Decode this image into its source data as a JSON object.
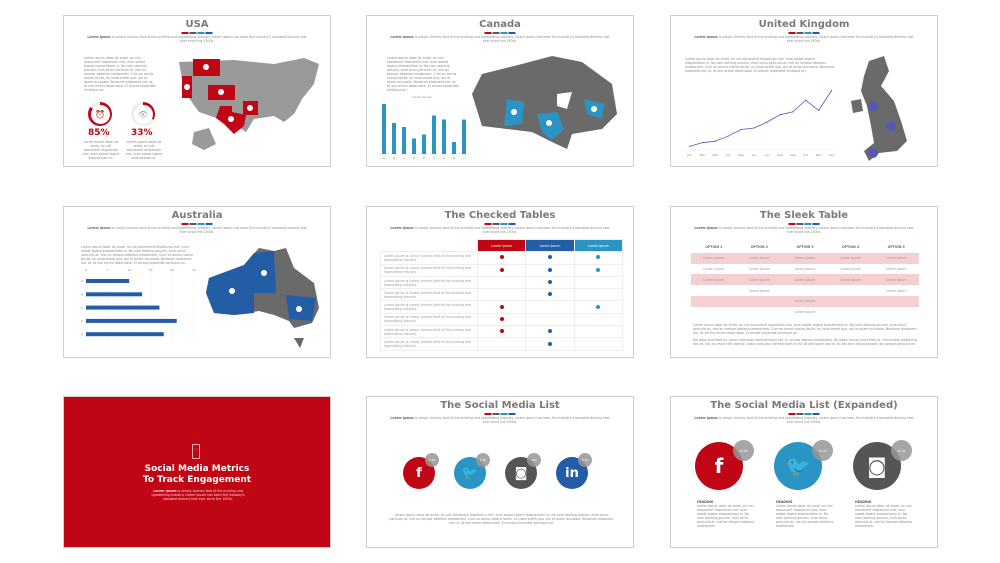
{
  "colors": {
    "red": "#c00514",
    "dark": "#5a5a5a",
    "light_blue": "#2a95c4",
    "blue": "#235da6",
    "gray_map": "#8c8c8c"
  },
  "lorem": {
    "bold": "Lorem Ipsum",
    "sub": " is simply dummy text of the printing and typesetting industry. Lorem Ipsum has been the industry's standard dummy text ever since the 1500s.",
    "para": "Lorem ipsum dolor sit amet, an vixi assueverit dispiduntu mei, eum soleat legere eloquentiam in. Ne nam doming posuim, eum simul periculis at, mei eu tempor debetus mediocrem. Cum ex omnis nostro facilis, eu iusto everti quo, qui et quem accusata. Bonorum elaborent nec ut, et vim errem deseruisse. Ei omnes imperdiet similique pri.",
    "para2": "Rei quas ocurreret ex, amet commodo reprehendunt nec in, an eos labores temporibus. At tation omnes ocurreret vis. Omnesque adipiscing eos ex. Ne usu esse nibh doendi, ludus consulatu democritum et est. Brutiti apeiri sea id, an sea dico cibo iudicabit, qui possim periculo ne.",
    "short": "Lorem ipsum dolor sit amet, an vixi assueverit dispiduntu mei, eum soleat legere eloquentiam in.",
    "heading_body": "Lorem ipsum dolor sit amet, an vixi assueverit dispiduntu mei, eum soleat legere eloquentiam in. Ne nam doming posuim, eum simul periculis at, mei eu tempor debetus mediocrem."
  },
  "usa": {
    "title": "USA",
    "stats": [
      {
        "value": "85%",
        "fraction": 0.85,
        "icon": "alarm-clock-icon"
      },
      {
        "value": "33%",
        "fraction": 0.33,
        "icon": "eye-icon"
      }
    ]
  },
  "canada": {
    "title": "Canada",
    "chart_label": "Lorem Ipsum"
  },
  "uk": {
    "title": "United Kingdom"
  },
  "australia": {
    "title": "Australia"
  },
  "checked": {
    "title": "The Checked Tables",
    "headers": [
      "Lorem Ipsum",
      "Lorem Ipsum",
      "Lorem Ipsum"
    ],
    "row_label": "Lorem Ipsum is simply dummy text of the printing and typesetting industry.",
    "rows": [
      [
        1,
        1,
        1
      ],
      [
        1,
        1,
        1
      ],
      [
        0,
        1,
        0
      ],
      [
        0,
        1,
        0
      ],
      [
        1,
        0,
        1
      ],
      [
        1,
        0,
        0
      ],
      [
        1,
        1,
        0
      ],
      [
        0,
        1,
        0
      ]
    ]
  },
  "sleek": {
    "title": "The Sleek Table",
    "headers": [
      "OPTION 1",
      "OPTION 2",
      "OPTION 3",
      "OPTION 4",
      "OPTION 5"
    ],
    "cell": "Lorem Ipsum",
    "rows": [
      [
        1,
        1,
        1,
        1,
        1
      ],
      [
        1,
        1,
        1,
        1,
        1
      ],
      [
        1,
        1,
        1,
        1,
        1
      ],
      [
        0,
        1,
        0,
        0,
        1
      ],
      [
        0,
        0,
        1,
        0,
        0
      ],
      [
        0,
        0,
        1,
        0,
        0
      ]
    ]
  },
  "cover": {
    "title": "Social Media Metrics To Track Engagement",
    "icon": "smartphone-heart-icon"
  },
  "social": {
    "title": "The Social Media List",
    "items": [
      {
        "icon": "facebook-icon",
        "glyph": "f",
        "badge": "5.2k",
        "color": "#c00514"
      },
      {
        "icon": "twitter-icon",
        "glyph": "🐦",
        "badge": "5.8k",
        "color": "#2a95c4"
      },
      {
        "icon": "instagram-icon",
        "glyph": "◙",
        "badge": "10k",
        "color": "#555555"
      },
      {
        "icon": "linkedin-icon",
        "glyph": "in",
        "badge": "5.7k",
        "color": "#235da6"
      }
    ]
  },
  "social_expanded": {
    "title": "The Social Media List (Expanded)",
    "items": [
      {
        "icon": "facebook-icon",
        "glyph": "f",
        "badge": "31.8k",
        "heading": "HEADING",
        "color": "#c00514"
      },
      {
        "icon": "twitter-icon",
        "glyph": "🐦",
        "badge": "73.2k",
        "heading": "HEADING",
        "color": "#2a95c4"
      },
      {
        "icon": "instagram-icon",
        "glyph": "◙",
        "badge": "18.2k",
        "heading": "HEADING",
        "color": "#555555"
      }
    ]
  },
  "chart_data": [
    {
      "type": "bar",
      "title": "Lorem Ipsum",
      "categories": [
        "A",
        "B",
        "C",
        "D",
        "E",
        "F",
        "G",
        "H",
        "I"
      ],
      "values": [
        100,
        62,
        54,
        31,
        39,
        77,
        69,
        24,
        69
      ],
      "color": "#2a95c4",
      "grid": false
    },
    {
      "type": "line",
      "categories": [
        "Jan",
        "Feb",
        "Mar",
        "Apr",
        "May",
        "Jun",
        "Jul",
        "Aug",
        "Sep",
        "Oct",
        "Nov",
        "Dec"
      ],
      "values": [
        5,
        10,
        12,
        19,
        28,
        30,
        38,
        48,
        52,
        68,
        54,
        81
      ],
      "color": "#5558b5",
      "grid": false
    },
    {
      "type": "bar",
      "orientation": "horizontal",
      "categories": [
        "A",
        "B",
        "C",
        "D",
        "E"
      ],
      "values": [
        10,
        13,
        17,
        21,
        18
      ],
      "xlim": [
        0,
        25
      ],
      "ticks": [
        0,
        5,
        10,
        15,
        20,
        25
      ],
      "color": "#235da6",
      "grid": true
    }
  ]
}
